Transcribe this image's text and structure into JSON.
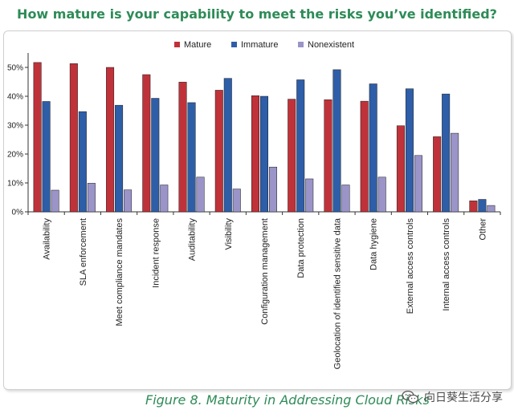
{
  "figure": {
    "title": "How mature is your capability to meet the risks you’ve identified?",
    "caption": "Figure 8. Maturity in Addressing Cloud Risks",
    "watermark": "向日葵生活分享",
    "watermark_icon": "wechat-icon",
    "title_color": "#2e8b57",
    "caption_color": "#2e8b57"
  },
  "chart_data": {
    "type": "bar",
    "title": "",
    "xlabel": "",
    "ylabel": "",
    "ylim": [
      0,
      55
    ],
    "yticks": [
      0,
      10,
      20,
      30,
      40,
      50
    ],
    "ytick_labels": [
      "0%",
      "10%",
      "20%",
      "30%",
      "40%",
      "50%"
    ],
    "grid": false,
    "legend_position": "top-center",
    "categories": [
      "Availability",
      "SLA enforcement",
      "Meet compliance mandates",
      "Incident response",
      "Auditability",
      "Visibility",
      "Configuration management",
      "Data protection",
      "Geolocation of identified sensitive data",
      "Data hygiene",
      "External access controls",
      "Internal access controls",
      "Other"
    ],
    "series": [
      {
        "name": "Mature",
        "color": "#c0323a",
        "values": [
          51.7,
          51.3,
          50.0,
          47.5,
          44.9,
          42.1,
          40.2,
          39.0,
          38.8,
          38.3,
          29.8,
          26.0,
          3.8
        ]
      },
      {
        "name": "Immature",
        "color": "#2e5ea8",
        "values": [
          38.2,
          34.7,
          36.9,
          39.3,
          37.8,
          46.2,
          40.0,
          45.7,
          49.2,
          44.3,
          42.6,
          40.8,
          4.3
        ]
      },
      {
        "name": "Nonexistent",
        "color": "#9a94c8",
        "values": [
          7.5,
          9.9,
          7.6,
          9.3,
          12.0,
          7.9,
          15.5,
          11.4,
          9.3,
          12.0,
          19.5,
          27.2,
          2.2
        ]
      }
    ]
  }
}
